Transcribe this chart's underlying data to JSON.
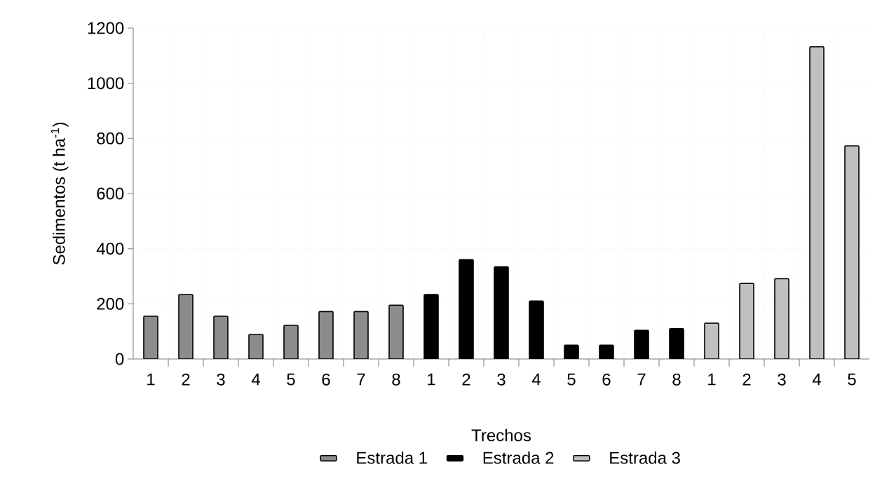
{
  "chart_data": {
    "type": "bar",
    "xlabel": "Trechos",
    "ylabel": "Sedimentos (t ha$^{-1}$)",
    "categories": [
      "1",
      "2",
      "3",
      "4",
      "5",
      "6",
      "7",
      "8",
      "1",
      "2",
      "3",
      "4",
      "5",
      "6",
      "7",
      "8",
      "1",
      "2",
      "3",
      "4",
      "5"
    ],
    "series": [
      {
        "name": "Estrada 1",
        "color": "#8c8c8c",
        "values": [
          155,
          234,
          155,
          89,
          122,
          172,
          172,
          195,
          null,
          null,
          null,
          null,
          null,
          null,
          null,
          null,
          null,
          null,
          null,
          null,
          null
        ]
      },
      {
        "name": "Estrada 2",
        "color": "#000000",
        "values": [
          null,
          null,
          null,
          null,
          null,
          null,
          null,
          null,
          234,
          360,
          334,
          210,
          50,
          50,
          104,
          110,
          null,
          null,
          null,
          null,
          null
        ]
      },
      {
        "name": "Estrada 3",
        "color": "#c0c0c0",
        "values": [
          null,
          null,
          null,
          null,
          null,
          null,
          null,
          null,
          null,
          null,
          null,
          null,
          null,
          null,
          null,
          null,
          130,
          274,
          291,
          1132,
          773
        ]
      }
    ],
    "ylim": [
      0,
      1200
    ],
    "yticks": [
      0,
      200,
      400,
      600,
      800,
      1000,
      1200
    ],
    "grid": true,
    "legend": "bottom"
  }
}
